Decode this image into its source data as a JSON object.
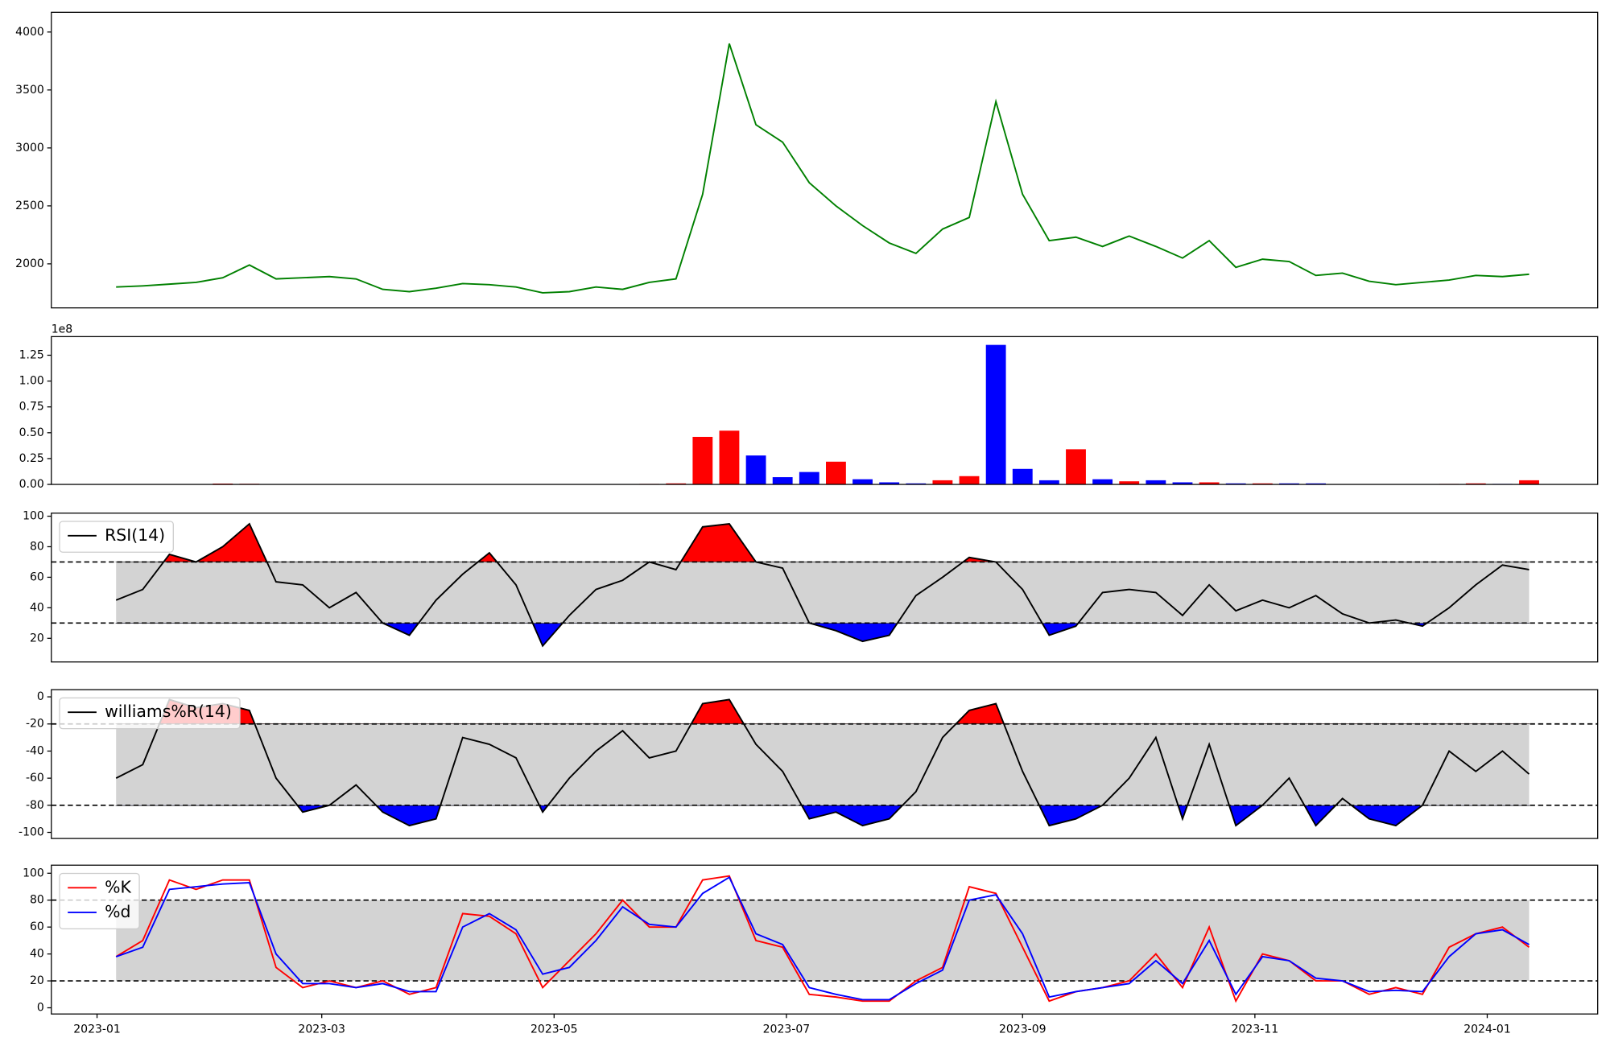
{
  "chart_data": [
    {
      "type": "line",
      "x": [
        "2023-01-06",
        "2023-01-13",
        "2023-01-20",
        "2023-01-27",
        "2023-02-03",
        "2023-02-10",
        "2023-02-17",
        "2023-02-24",
        "2023-03-03",
        "2023-03-10",
        "2023-03-17",
        "2023-03-24",
        "2023-03-31",
        "2023-04-07",
        "2023-04-14",
        "2023-04-21",
        "2023-04-28",
        "2023-05-05",
        "2023-05-12",
        "2023-05-19",
        "2023-05-26",
        "2023-06-02",
        "2023-06-09",
        "2023-06-16",
        "2023-06-23",
        "2023-06-30",
        "2023-07-07",
        "2023-07-14",
        "2023-07-21",
        "2023-07-28",
        "2023-08-04",
        "2023-08-11",
        "2023-08-18",
        "2023-08-25",
        "2023-09-01",
        "2023-09-08",
        "2023-09-15",
        "2023-09-22",
        "2023-09-29",
        "2023-10-06",
        "2023-10-13",
        "2023-10-20",
        "2023-10-27",
        "2023-11-03",
        "2023-11-10",
        "2023-11-17",
        "2023-11-24",
        "2023-12-01",
        "2023-12-08",
        "2023-12-15",
        "2023-12-22",
        "2023-12-29",
        "2024-01-05",
        "2024-01-12"
      ],
      "series": [
        {
          "color": "#008000",
          "values": [
            1800,
            1810,
            1825,
            1840,
            1880,
            1990,
            1870,
            1880,
            1890,
            1870,
            1780,
            1760,
            1790,
            1830,
            1820,
            1800,
            1750,
            1760,
            1800,
            1780,
            1840,
            1870,
            2600,
            3900,
            3200,
            3050,
            2700,
            2500,
            2330,
            2180,
            2090,
            2300,
            2400,
            3400,
            2600,
            2200,
            2230,
            2150,
            2240,
            2150,
            2050,
            2200,
            1970,
            2040,
            2020,
            1900,
            1920,
            1850,
            1820,
            1840,
            1860,
            1900,
            1890,
            1910
          ]
        }
      ],
      "xlim": [
        "2022-12-20",
        "2024-01-30"
      ],
      "ylim": [
        1620,
        4170
      ],
      "yticks": [
        2000,
        2500,
        3000,
        3500,
        4000
      ]
    },
    {
      "type": "bar",
      "x": [
        "2023-01-06",
        "2023-01-13",
        "2023-01-20",
        "2023-01-27",
        "2023-02-03",
        "2023-02-10",
        "2023-02-17",
        "2023-02-24",
        "2023-03-03",
        "2023-03-10",
        "2023-03-17",
        "2023-03-24",
        "2023-03-31",
        "2023-04-07",
        "2023-04-14",
        "2023-04-21",
        "2023-04-28",
        "2023-05-05",
        "2023-05-12",
        "2023-05-19",
        "2023-05-26",
        "2023-06-02",
        "2023-06-09",
        "2023-06-16",
        "2023-06-23",
        "2023-06-30",
        "2023-07-07",
        "2023-07-14",
        "2023-07-21",
        "2023-07-28",
        "2023-08-04",
        "2023-08-11",
        "2023-08-18",
        "2023-08-25",
        "2023-09-01",
        "2023-09-08",
        "2023-09-15",
        "2023-09-22",
        "2023-09-29",
        "2023-10-06",
        "2023-10-13",
        "2023-10-20",
        "2023-10-27",
        "2023-11-03",
        "2023-11-10",
        "2023-11-17",
        "2023-11-24",
        "2023-12-01",
        "2023-12-08",
        "2023-12-15",
        "2023-12-22",
        "2023-12-29",
        "2024-01-05",
        "2024-01-12"
      ],
      "values": [
        0.002,
        0.002,
        0.002,
        0.003,
        0.008,
        0.006,
        0.003,
        0.002,
        0.004,
        0.002,
        0.002,
        0.002,
        0.002,
        0.002,
        0.002,
        0.002,
        0.002,
        0.002,
        0.002,
        0.003,
        0.005,
        0.01,
        0.46,
        0.52,
        0.28,
        0.07,
        0.12,
        0.22,
        0.05,
        0.02,
        0.01,
        0.04,
        0.08,
        1.35,
        0.15,
        0.04,
        0.34,
        0.05,
        0.03,
        0.04,
        0.02,
        0.02,
        0.01,
        0.01,
        0.01,
        0.01,
        0.003,
        0.003,
        0.002,
        0.003,
        0.005,
        0.01,
        0.005,
        0.04
      ],
      "colors": [
        "red",
        "red",
        "red",
        "red",
        "red",
        "red",
        "blue",
        "red",
        "red",
        "blue",
        "blue",
        "blue",
        "red",
        "red",
        "blue",
        "blue",
        "blue",
        "red",
        "red",
        "blue",
        "red",
        "red",
        "red",
        "red",
        "blue",
        "blue",
        "blue",
        "red",
        "blue",
        "blue",
        "blue",
        "red",
        "red",
        "blue",
        "blue",
        "blue",
        "red",
        "blue",
        "red",
        "blue",
        "blue",
        "red",
        "blue",
        "red",
        "blue",
        "blue",
        "red",
        "blue",
        "blue",
        "red",
        "red",
        "red",
        "blue",
        "red"
      ],
      "offset_label": "1e8",
      "xlim": [
        "2022-12-20",
        "2024-01-30"
      ],
      "ylim": [
        0,
        1.43
      ],
      "yticks": [
        {
          "value": 0,
          "label": "0.00"
        },
        {
          "value": 0.25,
          "label": "0.25"
        },
        {
          "value": 0.5,
          "label": "0.50"
        },
        {
          "value": 0.75,
          "label": "0.75"
        },
        {
          "value": 1,
          "label": "1.00"
        },
        {
          "value": 1.25,
          "label": "1.25"
        }
      ]
    },
    {
      "type": "oscillator",
      "x": [
        "2023-01-06",
        "2023-01-13",
        "2023-01-20",
        "2023-01-27",
        "2023-02-03",
        "2023-02-10",
        "2023-02-17",
        "2023-02-24",
        "2023-03-03",
        "2023-03-10",
        "2023-03-17",
        "2023-03-24",
        "2023-03-31",
        "2023-04-07",
        "2023-04-14",
        "2023-04-21",
        "2023-04-28",
        "2023-05-05",
        "2023-05-12",
        "2023-05-19",
        "2023-05-26",
        "2023-06-02",
        "2023-06-09",
        "2023-06-16",
        "2023-06-23",
        "2023-06-30",
        "2023-07-07",
        "2023-07-14",
        "2023-07-21",
        "2023-07-28",
        "2023-08-04",
        "2023-08-11",
        "2023-08-18",
        "2023-08-25",
        "2023-09-01",
        "2023-09-08",
        "2023-09-15",
        "2023-09-22",
        "2023-09-29",
        "2023-10-06",
        "2023-10-13",
        "2023-10-20",
        "2023-10-27",
        "2023-11-03",
        "2023-11-10",
        "2023-11-17",
        "2023-11-24",
        "2023-12-01",
        "2023-12-08",
        "2023-12-15",
        "2023-12-22",
        "2023-12-29",
        "2024-01-05",
        "2024-01-12"
      ],
      "series": [
        {
          "name": "RSI(14)",
          "color": "#000000",
          "values": [
            45,
            52,
            75,
            70,
            80,
            95,
            57,
            55,
            40,
            50,
            30,
            22,
            45,
            62,
            76,
            55,
            15,
            35,
            52,
            58,
            70,
            65,
            93,
            95,
            70,
            66,
            30,
            25,
            18,
            22,
            48,
            60,
            73,
            70,
            52,
            22,
            28,
            50,
            52,
            50,
            35,
            55,
            38,
            45,
            40,
            48,
            36,
            30,
            32,
            28,
            40,
            55,
            68,
            65
          ]
        }
      ],
      "hlines": [
        30,
        70
      ],
      "band_color": "#d3d3d3",
      "fill_between": true,
      "upper_color": "red",
      "lower_color": "blue",
      "xlim": [
        "2022-12-20",
        "2024-01-30"
      ],
      "ylim": [
        4.5,
        102
      ],
      "yticks": [
        20,
        40,
        60,
        80,
        100
      ]
    },
    {
      "type": "oscillator",
      "x": [
        "2023-01-06",
        "2023-01-13",
        "2023-01-20",
        "2023-01-27",
        "2023-02-03",
        "2023-02-10",
        "2023-02-17",
        "2023-02-24",
        "2023-03-03",
        "2023-03-10",
        "2023-03-17",
        "2023-03-24",
        "2023-03-31",
        "2023-04-07",
        "2023-04-14",
        "2023-04-21",
        "2023-04-28",
        "2023-05-05",
        "2023-05-12",
        "2023-05-19",
        "2023-05-26",
        "2023-06-02",
        "2023-06-09",
        "2023-06-16",
        "2023-06-23",
        "2023-06-30",
        "2023-07-07",
        "2023-07-14",
        "2023-07-21",
        "2023-07-28",
        "2023-08-04",
        "2023-08-11",
        "2023-08-18",
        "2023-08-25",
        "2023-09-01",
        "2023-09-08",
        "2023-09-15",
        "2023-09-22",
        "2023-09-29",
        "2023-10-06",
        "2023-10-13",
        "2023-10-20",
        "2023-10-27",
        "2023-11-03",
        "2023-11-10",
        "2023-11-17",
        "2023-11-24",
        "2023-12-01",
        "2023-12-08",
        "2023-12-15",
        "2023-12-22",
        "2023-12-29",
        "2024-01-05",
        "2024-01-12"
      ],
      "series": [
        {
          "name": "williams%R(14)",
          "color": "#000000",
          "values": [
            -60,
            -50,
            -2,
            -8,
            -5,
            -10,
            -60,
            -85,
            -80,
            -65,
            -85,
            -95,
            -90,
            -30,
            -35,
            -45,
            -85,
            -60,
            -40,
            -25,
            -45,
            -40,
            -5,
            -2,
            -35,
            -55,
            -90,
            -85,
            -95,
            -90,
            -70,
            -30,
            -10,
            -5,
            -55,
            -95,
            -90,
            -80,
            -60,
            -30,
            -90,
            -35,
            -95,
            -80,
            -60,
            -95,
            -75,
            -90,
            -95,
            -80,
            -40,
            -55,
            -40,
            -57
          ]
        }
      ],
      "hlines": [
        -80,
        -20
      ],
      "band_color": "#d3d3d3",
      "fill_between": true,
      "upper_color": "red",
      "lower_color": "blue",
      "xlim": [
        "2022-12-20",
        "2024-01-30"
      ],
      "ylim": [
        -104.5,
        5.3
      ],
      "yticks": [
        -100,
        -80,
        -60,
        -40,
        -20,
        0
      ]
    },
    {
      "type": "oscillator",
      "x": [
        "2023-01-06",
        "2023-01-13",
        "2023-01-20",
        "2023-01-27",
        "2023-02-03",
        "2023-02-10",
        "2023-02-17",
        "2023-02-24",
        "2023-03-03",
        "2023-03-10",
        "2023-03-17",
        "2023-03-24",
        "2023-03-31",
        "2023-04-07",
        "2023-04-14",
        "2023-04-21",
        "2023-04-28",
        "2023-05-05",
        "2023-05-12",
        "2023-05-19",
        "2023-05-26",
        "2023-06-02",
        "2023-06-09",
        "2023-06-16",
        "2023-06-23",
        "2023-06-30",
        "2023-07-07",
        "2023-07-14",
        "2023-07-21",
        "2023-07-28",
        "2023-08-04",
        "2023-08-11",
        "2023-08-18",
        "2023-08-25",
        "2023-09-01",
        "2023-09-08",
        "2023-09-15",
        "2023-09-22",
        "2023-09-29",
        "2023-10-06",
        "2023-10-13",
        "2023-10-20",
        "2023-10-27",
        "2023-11-03",
        "2023-11-10",
        "2023-11-17",
        "2023-11-24",
        "2023-12-01",
        "2023-12-08",
        "2023-12-15",
        "2023-12-22",
        "2023-12-29",
        "2024-01-05",
        "2024-01-12"
      ],
      "series": [
        {
          "name": "%K",
          "color": "red",
          "values": [
            38,
            50,
            95,
            88,
            95,
            95,
            30,
            15,
            20,
            15,
            20,
            10,
            15,
            70,
            68,
            55,
            15,
            35,
            55,
            80,
            60,
            60,
            95,
            98,
            50,
            45,
            10,
            8,
            5,
            5,
            20,
            30,
            90,
            85,
            45,
            5,
            12,
            15,
            20,
            40,
            15,
            60,
            5,
            40,
            35,
            20,
            20,
            10,
            15,
            10,
            45,
            55,
            60,
            45
          ]
        },
        {
          "name": "%d",
          "color": "blue",
          "values": [
            38,
            45,
            88,
            90,
            92,
            93,
            40,
            18,
            18,
            15,
            18,
            12,
            12,
            60,
            70,
            58,
            25,
            30,
            50,
            75,
            62,
            60,
            85,
            97,
            55,
            47,
            15,
            10,
            6,
            6,
            18,
            28,
            80,
            84,
            55,
            8,
            12,
            15,
            18,
            35,
            18,
            50,
            10,
            38,
            35,
            22,
            20,
            12,
            13,
            12,
            38,
            55,
            58,
            47
          ]
        }
      ],
      "hlines": [
        20,
        80
      ],
      "band_color": "#d3d3d3",
      "fill_between": false,
      "xlim": [
        "2022-12-20",
        "2024-01-30"
      ],
      "ylim": [
        -4.6,
        106
      ],
      "yticks": [
        0,
        20,
        40,
        60,
        80,
        100
      ],
      "xticks": [
        {
          "value": "2023-01-01",
          "label": "2023-01"
        },
        {
          "value": "2023-03-01",
          "label": "2023-03"
        },
        {
          "value": "2023-05-01",
          "label": "2023-05"
        },
        {
          "value": "2023-07-01",
          "label": "2023-07"
        },
        {
          "value": "2023-09-01",
          "label": "2023-09"
        },
        {
          "value": "2023-11-01",
          "label": "2023-11"
        },
        {
          "value": "2024-01-01",
          "label": "2024-01"
        }
      ]
    }
  ]
}
